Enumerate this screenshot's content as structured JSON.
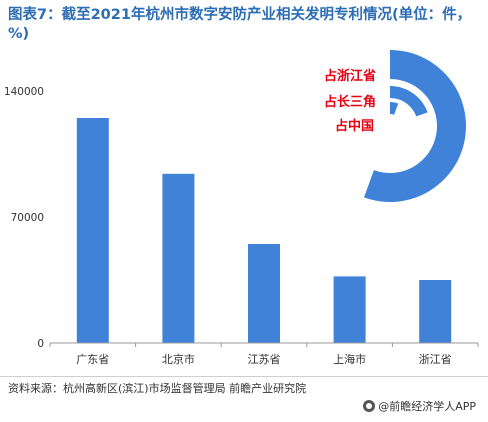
{
  "title": "图表7：截至2021年杭州市数字安防产业相关发明专利情况(单位：件，%)",
  "source": "资料来源：杭州高新区(滨江)市场监督管理局 前瞻产业研究院",
  "brand": "@前瞻经济学人APP",
  "colors": {
    "bar": "#3f82d8",
    "title": "#2d6db4",
    "donut_label": "#e60012"
  },
  "chart_data": [
    {
      "type": "bar",
      "categories": [
        "广东省",
        "北京市",
        "江苏省",
        "上海市",
        "浙江省"
      ],
      "values": [
        125000,
        94000,
        55000,
        37000,
        35000
      ],
      "yticks": [
        0,
        70000,
        140000
      ],
      "ylim": [
        0,
        140000
      ],
      "grid": false
    },
    {
      "type": "pie",
      "labels": [
        "占浙江省",
        "占长三角",
        "占中国"
      ],
      "label_color": "#e60012"
    }
  ]
}
